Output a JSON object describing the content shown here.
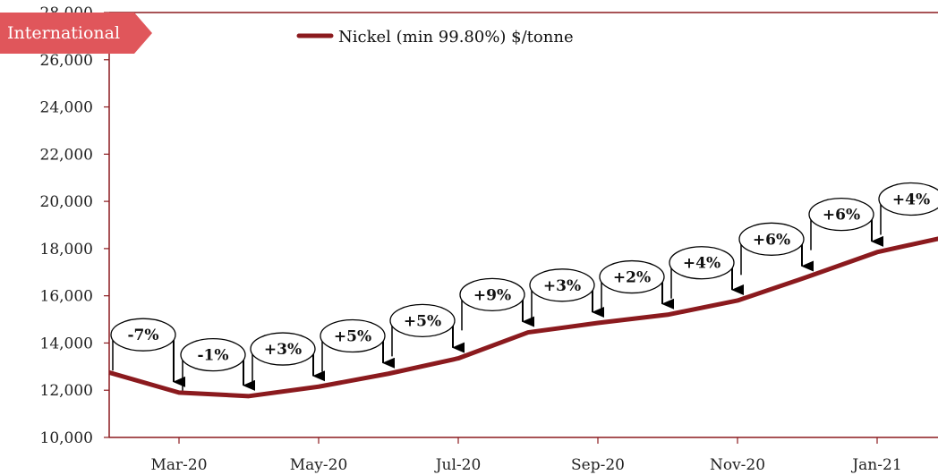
{
  "badge": {
    "label": "International",
    "color": "#e0565b"
  },
  "colors": {
    "line": "#8b1a1e",
    "axis": "#8b1a1e",
    "arrow": "#000000"
  },
  "chart_data": {
    "type": "line",
    "title": "",
    "xlabel": "",
    "ylabel": "",
    "ylim": [
      10000,
      28000
    ],
    "yticks": [
      "10,000",
      "12,000",
      "14,000",
      "16,000",
      "18,000",
      "20,000",
      "22,000",
      "24,000",
      "26,000",
      "28,000"
    ],
    "ytick_values": [
      10000,
      12000,
      14000,
      16000,
      18000,
      20000,
      22000,
      24000,
      26000,
      28000
    ],
    "x": [
      "Feb-20",
      "Mar-20",
      "Apr-20",
      "May-20",
      "Jun-20",
      "Jul-20",
      "Aug-20",
      "Sep-20",
      "Oct-20",
      "Nov-20",
      "Dec-20",
      "Jan-21",
      "Feb-21"
    ],
    "xtick_labels": [
      "Mar-20",
      "May-20",
      "Jul-20",
      "Sep-20",
      "Nov-20",
      "Jan-21"
    ],
    "series": [
      {
        "name": "Nickel (min 99.80%) $/tonne",
        "values": [
          12750,
          11900,
          11750,
          12150,
          12700,
          13350,
          14450,
          14850,
          15200,
          15800,
          16800,
          17850,
          18500
        ]
      }
    ],
    "annotations": [
      {
        "label": "-7%",
        "from": "Feb-20",
        "to": "Mar-20"
      },
      {
        "label": "-1%",
        "from": "Mar-20",
        "to": "Apr-20"
      },
      {
        "label": "+3%",
        "from": "Apr-20",
        "to": "May-20"
      },
      {
        "label": "+5%",
        "from": "May-20",
        "to": "Jun-20"
      },
      {
        "label": "+5%",
        "from": "Jun-20",
        "to": "Jul-20"
      },
      {
        "label": "+9%",
        "from": "Jul-20",
        "to": "Aug-20"
      },
      {
        "label": "+3%",
        "from": "Aug-20",
        "to": "Sep-20"
      },
      {
        "label": "+2%",
        "from": "Sep-20",
        "to": "Oct-20"
      },
      {
        "label": "+4%",
        "from": "Oct-20",
        "to": "Nov-20"
      },
      {
        "label": "+6%",
        "from": "Nov-20",
        "to": "Dec-20"
      },
      {
        "label": "+6%",
        "from": "Dec-20",
        "to": "Jan-21"
      },
      {
        "label": "+4%",
        "from": "Jan-21",
        "to": "Feb-21"
      }
    ],
    "legend": "top-center",
    "grid": false
  }
}
